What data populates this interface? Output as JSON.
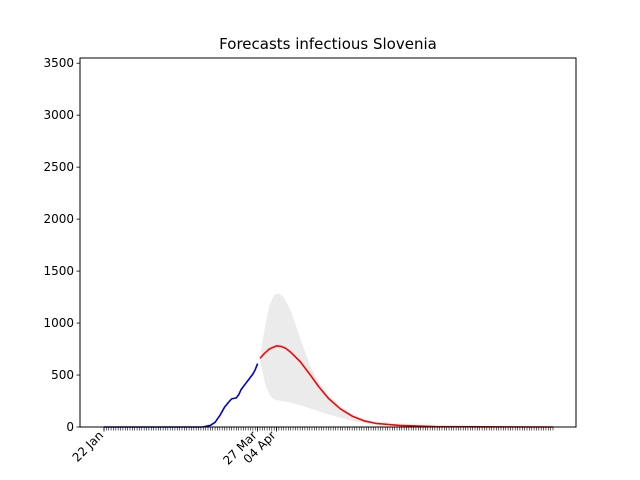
{
  "chart_data": {
    "type": "line",
    "title": "Forecasts infectious Slovenia",
    "xlabel": "",
    "ylabel": "",
    "x_start": "2020-01-22",
    "x_end": "2020-07-30",
    "ylim": [
      0,
      3550
    ],
    "yticks": [
      0,
      500,
      1000,
      1500,
      2000,
      2500,
      3000,
      3500
    ],
    "xtick_labels": [
      {
        "label": "22 Jan",
        "date": "2020-01-22"
      },
      {
        "label": "27 Mar",
        "date": "2020-03-27"
      },
      {
        "label": "04 Apr",
        "date": "2020-04-04"
      }
    ],
    "grid": false,
    "series": [
      {
        "kind": "observed",
        "color": "#0000cc",
        "points": [
          [
            "2020-01-22",
            0
          ],
          [
            "2020-02-26",
            0
          ],
          [
            "2020-03-04",
            1
          ],
          [
            "2020-03-07",
            15
          ],
          [
            "2020-03-09",
            45
          ],
          [
            "2020-03-11",
            110
          ],
          [
            "2020-03-13",
            190
          ],
          [
            "2020-03-15",
            245
          ],
          [
            "2020-03-16",
            270
          ],
          [
            "2020-03-18",
            280
          ],
          [
            "2020-03-19",
            310
          ],
          [
            "2020-03-20",
            360
          ],
          [
            "2020-03-21",
            390
          ],
          [
            "2020-03-22",
            420
          ],
          [
            "2020-03-23",
            450
          ],
          [
            "2020-03-24",
            480
          ],
          [
            "2020-03-25",
            510
          ],
          [
            "2020-03-26",
            550
          ],
          [
            "2020-03-27",
            610
          ]
        ]
      },
      {
        "kind": "forecast",
        "color": "#ff0000",
        "points": [
          [
            "2020-03-28",
            660
          ],
          [
            "2020-03-30",
            710
          ],
          [
            "2020-04-01",
            750
          ],
          [
            "2020-04-04",
            780
          ],
          [
            "2020-04-06",
            775
          ],
          [
            "2020-04-08",
            755
          ],
          [
            "2020-04-10",
            720
          ],
          [
            "2020-04-14",
            630
          ],
          [
            "2020-04-18",
            510
          ],
          [
            "2020-04-22",
            385
          ],
          [
            "2020-04-26",
            275
          ],
          [
            "2020-05-01",
            175
          ],
          [
            "2020-05-06",
            105
          ],
          [
            "2020-05-11",
            60
          ],
          [
            "2020-05-16",
            35
          ],
          [
            "2020-05-26",
            15
          ],
          [
            "2020-06-10",
            5
          ],
          [
            "2020-06-30",
            2
          ],
          [
            "2020-07-30",
            0
          ]
        ]
      }
    ],
    "band": {
      "color": "#ebebeb",
      "points": [
        [
          "2020-03-28",
          680,
          640
        ],
        [
          "2020-03-30",
          950,
          430
        ],
        [
          "2020-04-01",
          1170,
          310
        ],
        [
          "2020-04-03",
          1270,
          265
        ],
        [
          "2020-04-05",
          1285,
          255
        ],
        [
          "2020-04-07",
          1250,
          248
        ],
        [
          "2020-04-10",
          1120,
          235
        ],
        [
          "2020-04-14",
          860,
          210
        ],
        [
          "2020-04-18",
          600,
          180
        ],
        [
          "2020-04-22",
          420,
          150
        ],
        [
          "2020-04-26",
          300,
          120
        ],
        [
          "2020-05-01",
          190,
          90
        ],
        [
          "2020-05-06",
          120,
          60
        ],
        [
          "2020-05-11",
          70,
          40
        ],
        [
          "2020-05-21",
          30,
          18
        ],
        [
          "2020-06-10",
          8,
          4
        ],
        [
          "2020-07-30",
          0,
          0
        ]
      ]
    }
  }
}
